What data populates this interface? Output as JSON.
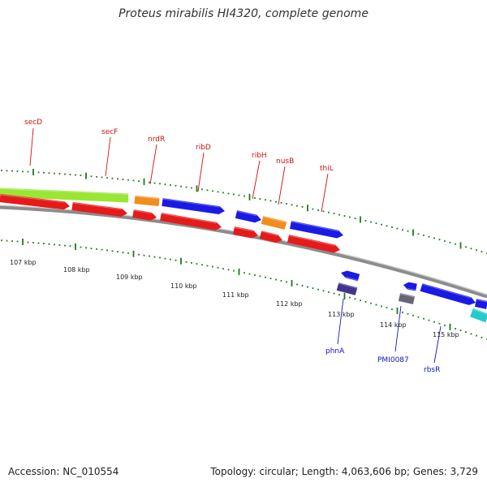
{
  "title": "Proteus mirabilis HI4320, complete genome",
  "accession": "Accession: NC_010554",
  "summary": "Topology: circular; Length: 4,063,606 bp; Genes: 3,729",
  "colors": {
    "backbone": "#8c8c8c",
    "tick": "#1a7a1a",
    "label_forward": "#cc1111",
    "label_reverse": "#1111bb",
    "green": "#99e633",
    "orange": "#f28c1a",
    "blue": "#1a1ae6",
    "red": "#e61a1a",
    "purple": "#44338c",
    "gray": "#666677",
    "cyan": "#22cccc"
  },
  "kbp_labels": [
    "107 kbp",
    "108 kbp",
    "109 kbp",
    "110 kbp",
    "111 kbp",
    "112 kbp",
    "113 kbp",
    "114 kbp",
    "115 kbp"
  ],
  "gene_labels_top": [
    "secD",
    "secF",
    "nrdR",
    "ribD",
    "ribH",
    "nusB",
    "thiL"
  ],
  "gene_labels_bottom": [
    "phnA",
    "PMI0087",
    "rbsR"
  ]
}
